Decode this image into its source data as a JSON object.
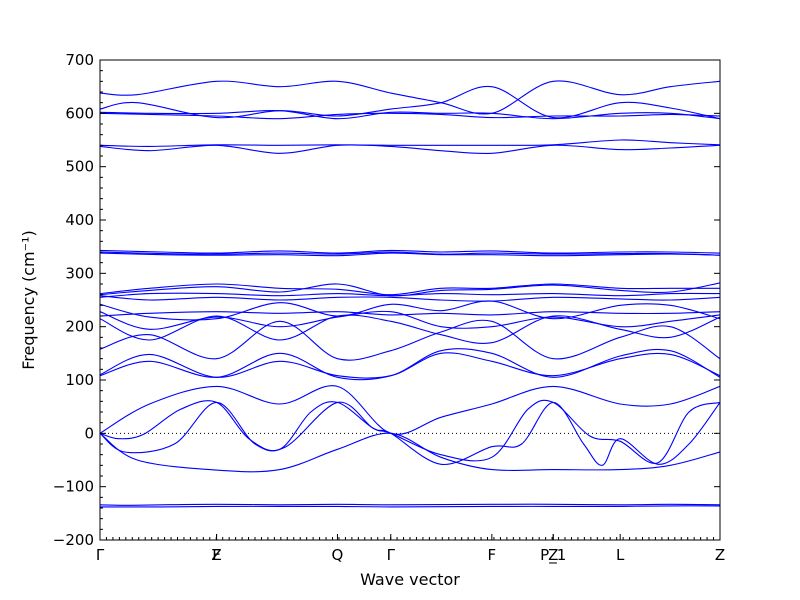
{
  "chart_data": {
    "type": "line",
    "title": "",
    "xlabel": "Wave vector",
    "ylabel": "Frequency (cm⁻¹)",
    "ylim": [
      -200,
      700
    ],
    "ytick_values": [
      -200,
      -100,
      0,
      100,
      200,
      300,
      400,
      500,
      600,
      700
    ],
    "ytick_labels": [
      "−200",
      "−100",
      "0",
      "100",
      "200",
      "300",
      "400",
      "500",
      "600",
      "700"
    ],
    "x_labels": [
      {
        "label": "Γ",
        "pos": 0.0
      },
      {
        "label": "Z",
        "pos": 0.188
      },
      {
        "label": "F",
        "pos": 0.188
      },
      {
        "label": "Q",
        "pos": 0.383
      },
      {
        "label": "Γ",
        "pos": 0.469
      },
      {
        "label": "F",
        "pos": 0.632
      },
      {
        "label": "P_1",
        "pos": 0.731
      },
      {
        "label": "Z",
        "pos": 0.731
      },
      {
        "label": "L",
        "pos": 0.839
      },
      {
        "label": "Z",
        "pos": 1.0
      }
    ],
    "zero_line": true,
    "grid": false,
    "line_color": "#0000ff",
    "series": [
      {
        "x": [
          0,
          0.06,
          0.188,
          0.29,
          0.383,
          0.469,
          0.55,
          0.632,
          0.731,
          0.839,
          0.92,
          1.0
        ],
        "y": [
          0,
          -50,
          -69,
          -68,
          -30,
          0,
          -45,
          -68,
          -68,
          -68,
          -60,
          -35
        ]
      },
      {
        "x": [
          0,
          0.04,
          0.12,
          0.188,
          0.25,
          0.3,
          0.383,
          0.44,
          0.469,
          0.55,
          0.632,
          0.68,
          0.731,
          0.78,
          0.81,
          0.839,
          0.9,
          0.95,
          1.0
        ],
        "y": [
          0,
          -35,
          -20,
          58,
          -20,
          -25,
          58,
          10,
          0,
          -58,
          -25,
          -20,
          58,
          -20,
          -60,
          -10,
          -58,
          -20,
          58
        ]
      },
      {
        "x": [
          0,
          0.03,
          0.07,
          0.13,
          0.188,
          0.24,
          0.29,
          0.34,
          0.383,
          0.44,
          0.469,
          0.55,
          0.632,
          0.69,
          0.731,
          0.79,
          0.839,
          0.9,
          0.95,
          1.0
        ],
        "y": [
          0,
          -10,
          -2,
          45,
          58,
          -10,
          -30,
          40,
          58,
          10,
          0,
          -40,
          -45,
          45,
          58,
          -5,
          -15,
          -55,
          40,
          58
        ]
      },
      {
        "x": [
          0,
          0.08,
          0.188,
          0.29,
          0.383,
          0.469,
          0.55,
          0.632,
          0.731,
          0.839,
          0.92,
          1.0
        ],
        "y": [
          0,
          55,
          88,
          55,
          88,
          0,
          30,
          55,
          88,
          55,
          55,
          88
        ]
      },
      {
        "x": [
          0,
          0.04,
          0.1,
          0.188,
          0.29,
          0.383,
          0.469,
          0.632,
          0.731,
          0.839,
          0.92,
          1.0
        ],
        "y": [
          -138,
          -138,
          -138,
          -137,
          -137,
          -137,
          -138,
          -137,
          -137,
          -137,
          -136,
          -136
        ]
      },
      {
        "x": [
          0,
          0.04,
          0.1,
          0.188,
          0.29,
          0.383,
          0.469,
          0.632,
          0.731,
          0.839,
          0.92,
          1.0
        ],
        "y": [
          -134,
          -135,
          -134,
          -133,
          -134,
          -133,
          -134,
          -133,
          -133,
          -134,
          -133,
          -134
        ]
      },
      {
        "x": [
          0,
          0.08,
          0.188,
          0.29,
          0.383,
          0.469,
          0.55,
          0.632,
          0.731,
          0.839,
          0.92,
          1.0
        ],
        "y": [
          108,
          135,
          105,
          150,
          105,
          108,
          155,
          150,
          105,
          145,
          155,
          105
        ]
      },
      {
        "x": [
          0,
          0.08,
          0.188,
          0.29,
          0.383,
          0.469,
          0.55,
          0.632,
          0.731,
          0.839,
          0.92,
          1.0
        ],
        "y": [
          110,
          148,
          105,
          135,
          108,
          108,
          150,
          135,
          108,
          140,
          148,
          108
        ]
      },
      {
        "x": [
          0,
          0.08,
          0.188,
          0.29,
          0.383,
          0.469,
          0.55,
          0.632,
          0.731,
          0.839,
          0.92,
          1.0
        ],
        "y": [
          158,
          185,
          140,
          210,
          140,
          155,
          190,
          210,
          140,
          180,
          200,
          140
        ]
      },
      {
        "x": [
          0,
          0.08,
          0.188,
          0.29,
          0.383,
          0.469,
          0.55,
          0.632,
          0.731,
          0.839,
          0.92,
          1.0
        ],
        "y": [
          215,
          175,
          220,
          175,
          220,
          210,
          185,
          170,
          220,
          195,
          180,
          218
        ]
      },
      {
        "x": [
          0,
          0.08,
          0.188,
          0.29,
          0.383,
          0.469,
          0.55,
          0.632,
          0.731,
          0.839,
          0.92,
          1.0
        ],
        "y": [
          228,
          195,
          218,
          200,
          218,
          228,
          200,
          200,
          218,
          200,
          210,
          222
        ]
      },
      {
        "x": [
          0,
          0.08,
          0.188,
          0.29,
          0.383,
          0.469,
          0.55,
          0.632,
          0.731,
          0.839,
          0.92,
          1.0
        ],
        "y": [
          242,
          218,
          215,
          245,
          220,
          242,
          230,
          248,
          215,
          240,
          240,
          215
        ]
      },
      {
        "x": [
          0,
          0.08,
          0.188,
          0.29,
          0.383,
          0.469,
          0.55,
          0.632,
          0.731,
          0.839,
          0.92,
          1.0
        ],
        "y": [
          258,
          250,
          255,
          250,
          255,
          255,
          250,
          248,
          255,
          252,
          250,
          255
        ]
      },
      {
        "x": [
          0,
          0.08,
          0.188,
          0.29,
          0.383,
          0.469,
          0.55,
          0.632,
          0.731,
          0.839,
          0.92,
          1.0
        ],
        "y": [
          260,
          268,
          275,
          265,
          280,
          258,
          268,
          270,
          278,
          268,
          265,
          282
        ]
      },
      {
        "x": [
          0,
          0.08,
          0.188,
          0.29,
          0.383,
          0.469,
          0.55,
          0.632,
          0.731,
          0.839,
          0.92,
          1.0
        ],
        "y": [
          255,
          262,
          262,
          258,
          262,
          258,
          262,
          260,
          262,
          258,
          262,
          262
        ]
      },
      {
        "x": [
          0,
          0.08,
          0.188,
          0.29,
          0.383,
          0.469,
          0.55,
          0.632,
          0.731,
          0.839,
          0.92,
          1.0
        ],
        "y": [
          262,
          272,
          280,
          272,
          270,
          260,
          272,
          272,
          280,
          272,
          272,
          272
        ]
      },
      {
        "x": [
          0,
          0.08,
          0.188,
          0.29,
          0.383,
          0.469,
          0.55,
          0.632,
          0.731,
          0.839,
          0.92,
          1.0
        ],
        "y": [
          220,
          225,
          228,
          225,
          228,
          222,
          225,
          222,
          228,
          225,
          225,
          228
        ]
      },
      {
        "x": [
          0,
          0.1,
          0.188,
          0.29,
          0.383,
          0.469,
          0.55,
          0.632,
          0.731,
          0.839,
          0.92,
          1.0
        ],
        "y": [
          343,
          340,
          338,
          342,
          338,
          343,
          340,
          342,
          338,
          340,
          340,
          338
        ]
      },
      {
        "x": [
          0,
          0.1,
          0.188,
          0.29,
          0.383,
          0.469,
          0.55,
          0.632,
          0.731,
          0.839,
          0.92,
          1.0
        ],
        "y": [
          340,
          337,
          336,
          338,
          336,
          340,
          336,
          338,
          336,
          337,
          337,
          334
        ]
      },
      {
        "x": [
          0,
          0.1,
          0.188,
          0.29,
          0.383,
          0.469,
          0.55,
          0.632,
          0.731,
          0.839,
          0.92,
          1.0
        ],
        "y": [
          338,
          335,
          334,
          335,
          333,
          338,
          335,
          335,
          333,
          335,
          336,
          334
        ]
      },
      {
        "x": [
          0,
          0.08,
          0.188,
          0.29,
          0.383,
          0.469,
          0.55,
          0.632,
          0.731,
          0.839,
          0.92,
          1.0
        ],
        "y": [
          538,
          530,
          540,
          525,
          540,
          538,
          530,
          525,
          540,
          532,
          535,
          540
        ]
      },
      {
        "x": [
          0,
          0.08,
          0.188,
          0.29,
          0.383,
          0.469,
          0.55,
          0.632,
          0.731,
          0.839,
          0.92,
          1.0
        ],
        "y": [
          540,
          538,
          541,
          540,
          541,
          540,
          540,
          540,
          541,
          550,
          545,
          541
        ]
      },
      {
        "x": [
          0,
          0.08,
          0.188,
          0.29,
          0.383,
          0.469,
          0.55,
          0.632,
          0.731,
          0.839,
          0.92,
          1.0
        ],
        "y": [
          600,
          598,
          595,
          590,
          598,
          600,
          598,
          592,
          595,
          595,
          598,
          595
        ]
      },
      {
        "x": [
          0,
          0.08,
          0.188,
          0.29,
          0.383,
          0.469,
          0.55,
          0.632,
          0.731,
          0.839,
          0.92,
          1.0
        ],
        "y": [
          602,
          600,
          600,
          605,
          590,
          602,
          600,
          600,
          590,
          600,
          600,
          590
        ]
      },
      {
        "x": [
          0,
          0.06,
          0.188,
          0.29,
          0.383,
          0.469,
          0.55,
          0.632,
          0.731,
          0.839,
          0.92,
          1.0
        ],
        "y": [
          608,
          620,
          592,
          605,
          595,
          608,
          620,
          650,
          592,
          620,
          610,
          590
        ]
      },
      {
        "x": [
          0,
          0.06,
          0.188,
          0.29,
          0.383,
          0.469,
          0.55,
          0.632,
          0.731,
          0.839,
          0.92,
          1.0
        ],
        "y": [
          638,
          635,
          660,
          650,
          660,
          638,
          620,
          600,
          660,
          635,
          650,
          660
        ]
      }
    ]
  }
}
